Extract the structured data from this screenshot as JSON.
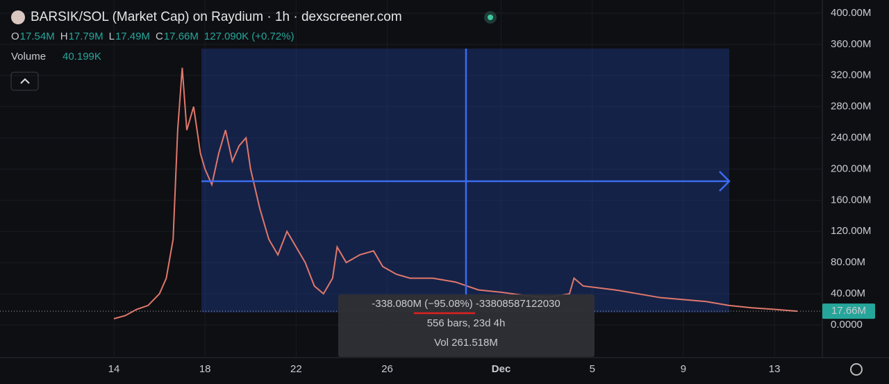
{
  "header": {
    "title": "BARSIK/SOL (Market Cap) on Raydium · 1h · dexscreener.com",
    "ohlc": [
      {
        "key": "O",
        "value": "17.54M"
      },
      {
        "key": "H",
        "value": "17.79M"
      },
      {
        "key": "L",
        "value": "17.49M"
      },
      {
        "key": "C",
        "value": "17.66M"
      }
    ],
    "change": "127.090K (+0.72%)",
    "volume_label": "Volume",
    "volume_value": "40.199K"
  },
  "measurement": {
    "change": "-338.080M (−95.08%) -33808587122030",
    "bars": "556 bars, 23d 4h",
    "volume": "Vol 261.518M"
  },
  "price_label": "17.66M",
  "chart_data": {
    "type": "line",
    "color": "#e0786b",
    "x": [
      14,
      14.5,
      15,
      15.5,
      16,
      16.3,
      16.6,
      16.8,
      17,
      17.2,
      17.5,
      17.8,
      18,
      18.3,
      18.6,
      18.9,
      19.2,
      19.5,
      19.8,
      20,
      20.4,
      20.8,
      21.2,
      21.6,
      22,
      22.4,
      22.8,
      23.2,
      23.6,
      23.8,
      24.2,
      24.8,
      25.4,
      25.8,
      26.4,
      27,
      28,
      29,
      30,
      31,
      32,
      33,
      34,
      34.2,
      34.6,
      36,
      38,
      40,
      41,
      42,
      43,
      44
    ],
    "values": [
      8,
      12,
      20,
      25,
      40,
      60,
      110,
      250,
      330,
      250,
      280,
      220,
      200,
      180,
      220,
      250,
      210,
      230,
      240,
      200,
      150,
      110,
      90,
      120,
      100,
      80,
      50,
      40,
      60,
      100,
      80,
      90,
      95,
      75,
      65,
      60,
      60,
      55,
      45,
      42,
      38,
      35,
      40,
      60,
      50,
      45,
      35,
      30,
      25,
      22,
      20,
      17.66
    ],
    "xlim": [
      9,
      45.1
    ],
    "xticks": [
      14,
      18,
      22,
      26,
      {
        "value": 31,
        "label": "Dec"
      },
      {
        "value": 35,
        "label": "5"
      },
      {
        "value": 39,
        "label": "9"
      },
      {
        "value": 43,
        "label": "13"
      }
    ],
    "ylim": [
      -41.9,
      416.9
    ],
    "yticks": [
      {
        "value": 0,
        "label": "0.0000"
      },
      {
        "value": 40,
        "label": "40.00M"
      },
      {
        "value": 80,
        "label": "80.00M"
      },
      {
        "value": 120,
        "label": "120.00M"
      },
      {
        "value": 160,
        "label": "160.00M"
      },
      {
        "value": 200,
        "label": "200.00M"
      },
      {
        "value": 240,
        "label": "240.00M"
      },
      {
        "value": 280,
        "label": "280.00M"
      },
      {
        "value": 320,
        "label": "320.00M"
      },
      {
        "value": 360,
        "label": "360.00M"
      },
      {
        "value": 400,
        "label": "400.00M"
      }
    ],
    "last_value": 17.66
  }
}
